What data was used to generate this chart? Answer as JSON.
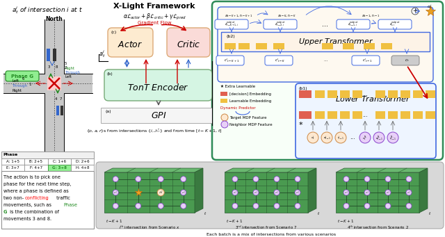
{
  "title": "X-Light Framework",
  "fig_width": 6.4,
  "fig_height": 3.41,
  "bg_color": "#ffffff",
  "phase_labels": [
    "A: 1+5",
    "B: 2+5",
    "C: 1+6",
    "D: 2+6",
    "E: 3+7",
    "F: 4+7",
    "G: 3+8",
    "H: 4+8"
  ],
  "color_upper_box": "#fdf3e7",
  "color_lower_box": "#eaf4fb",
  "color_actor": "#fdebd0",
  "color_critic": "#fadbd8",
  "color_tont": "#d5f5e3",
  "color_outer_box": "#2e8b57",
  "color_red": "#cc0000",
  "color_blue": "#3366cc",
  "color_green": "#228b22",
  "color_yellow_embed": "#f0c040",
  "color_orange_embed": "#e06050",
  "color_gray_embed": "#b0b0b0",
  "color_scenario_bg": "#d8d8d8",
  "color_road": "#c8c8c8",
  "color_phase_g": "#90ee90",
  "color_pink_center": "#ffcccc"
}
